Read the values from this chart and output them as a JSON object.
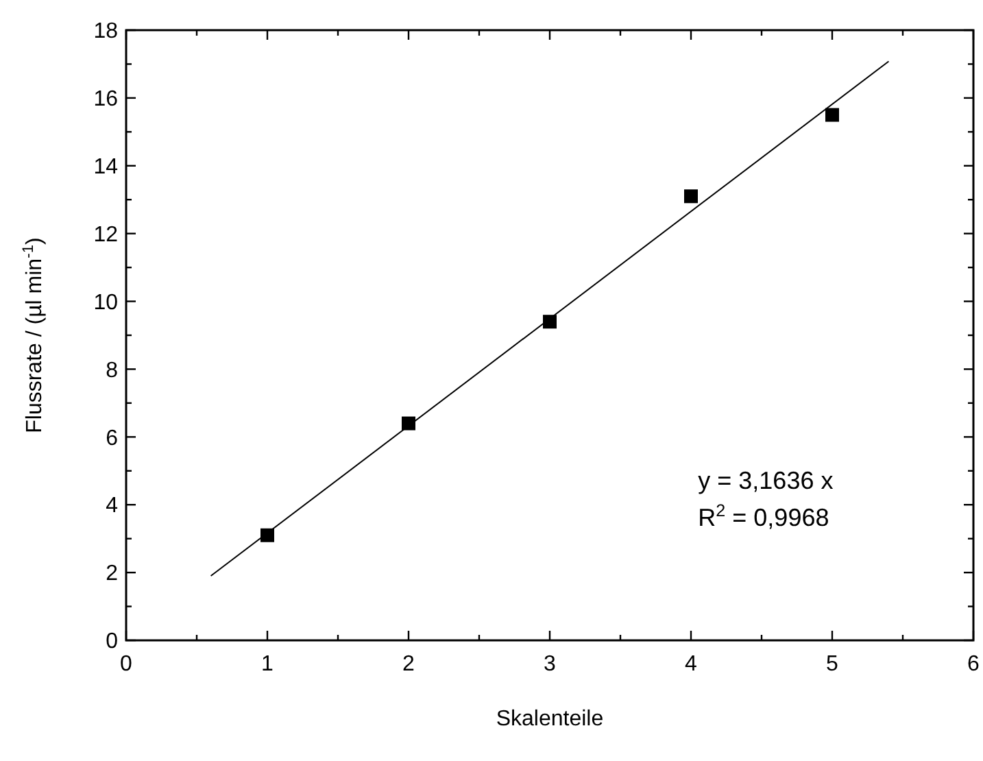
{
  "chart_data": {
    "type": "scatter",
    "xlabel": "Skalenteile",
    "ylabel": "Flussrate / (µl min$^{-1}$)",
    "x": [
      1,
      2,
      3,
      4,
      5
    ],
    "series": [
      {
        "color": "#000000",
        "marker": "square",
        "values": [
          3.1,
          6.4,
          9.4,
          13.1,
          15.5
        ]
      },
      {
        "type": "line",
        "color": "#000000",
        "marker": "none",
        "line_style": "solid",
        "x": [
          0.6,
          5.4
        ],
        "values": [
          1.9,
          17.08
        ]
      }
    ],
    "xlim": [
      0,
      6
    ],
    "xticks": [
      0,
      1,
      2,
      3,
      4,
      5,
      6
    ],
    "ylim": [
      0,
      18
    ],
    "yticks": [
      0,
      2,
      4,
      6,
      8,
      10,
      12,
      14,
      16,
      18
    ],
    "grid": false,
    "annotations": [
      "y = 3,1636 x",
      "R$^{2}$ = 0,9968"
    ]
  }
}
